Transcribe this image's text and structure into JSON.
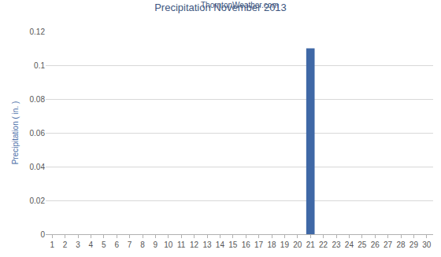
{
  "chart_data": {
    "type": "bar",
    "title": "Precipitation November 2013",
    "subtitle": "ThorntonWeather.com",
    "y_label": "Precipitation ( in. )",
    "categories": [
      "1",
      "2",
      "3",
      "4",
      "5",
      "6",
      "7",
      "8",
      "9",
      "10",
      "11",
      "12",
      "13",
      "14",
      "15",
      "16",
      "17",
      "18",
      "19",
      "20",
      "21",
      "22",
      "23",
      "24",
      "25",
      "26",
      "27",
      "28",
      "29",
      "30"
    ],
    "values": [
      0,
      0,
      0,
      0,
      0,
      0,
      0,
      0,
      0,
      0,
      0,
      0,
      0,
      0,
      0,
      0,
      0,
      0,
      0,
      0,
      0.11,
      0,
      0,
      0,
      0,
      0,
      0,
      0,
      0,
      0
    ],
    "color": "#3f68a6",
    "ylim": [
      0,
      0.12
    ],
    "yticks": [
      0,
      0.02,
      0.04,
      0.06,
      0.08,
      0.1,
      0.12
    ],
    "grid": true
  }
}
